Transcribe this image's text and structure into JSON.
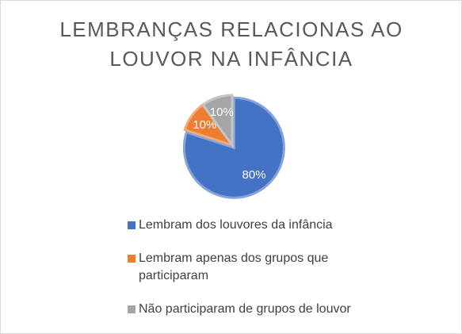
{
  "chart_data": {
    "type": "pie",
    "title": "LEMBRANÇAS RELACIONAS AO LOUVOR NA INFÂNCIA",
    "categories": [
      "Lembram dos louvores da infância",
      "Lembram apenas dos grupos que participaram",
      "Não participaram de grupos de louvor"
    ],
    "values": [
      80,
      10,
      10
    ],
    "value_labels": [
      "80%",
      "10%",
      "10%"
    ],
    "colors": [
      "#4472c4",
      "#ed7d31",
      "#a5a5a5"
    ],
    "legend": "bottom"
  }
}
